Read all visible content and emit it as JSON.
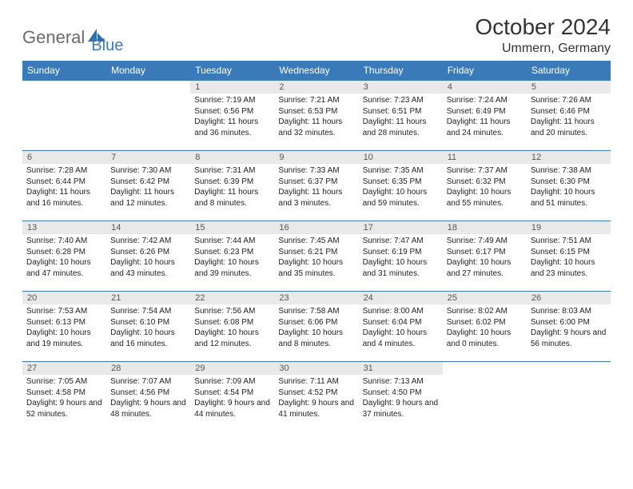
{
  "logo": {
    "word1": "General",
    "word2": "Blue"
  },
  "title": "October 2024",
  "location": "Ummern, Germany",
  "colors": {
    "header_bg": "#3a7ab8",
    "header_text": "#ffffff",
    "daynum_bg": "#e9e9e9",
    "border": "#3a7ab8",
    "logo_gray": "#6b6b6b",
    "logo_blue": "#3a7ab8"
  },
  "day_headers": [
    "Sunday",
    "Monday",
    "Tuesday",
    "Wednesday",
    "Thursday",
    "Friday",
    "Saturday"
  ],
  "weeks": [
    [
      null,
      null,
      {
        "n": "1",
        "sr": "7:19 AM",
        "ss": "6:56 PM",
        "dl": "11 hours and 36 minutes."
      },
      {
        "n": "2",
        "sr": "7:21 AM",
        "ss": "6:53 PM",
        "dl": "11 hours and 32 minutes."
      },
      {
        "n": "3",
        "sr": "7:23 AM",
        "ss": "6:51 PM",
        "dl": "11 hours and 28 minutes."
      },
      {
        "n": "4",
        "sr": "7:24 AM",
        "ss": "6:49 PM",
        "dl": "11 hours and 24 minutes."
      },
      {
        "n": "5",
        "sr": "7:26 AM",
        "ss": "6:46 PM",
        "dl": "11 hours and 20 minutes."
      }
    ],
    [
      {
        "n": "6",
        "sr": "7:28 AM",
        "ss": "6:44 PM",
        "dl": "11 hours and 16 minutes."
      },
      {
        "n": "7",
        "sr": "7:30 AM",
        "ss": "6:42 PM",
        "dl": "11 hours and 12 minutes."
      },
      {
        "n": "8",
        "sr": "7:31 AM",
        "ss": "6:39 PM",
        "dl": "11 hours and 8 minutes."
      },
      {
        "n": "9",
        "sr": "7:33 AM",
        "ss": "6:37 PM",
        "dl": "11 hours and 3 minutes."
      },
      {
        "n": "10",
        "sr": "7:35 AM",
        "ss": "6:35 PM",
        "dl": "10 hours and 59 minutes."
      },
      {
        "n": "11",
        "sr": "7:37 AM",
        "ss": "6:32 PM",
        "dl": "10 hours and 55 minutes."
      },
      {
        "n": "12",
        "sr": "7:38 AM",
        "ss": "6:30 PM",
        "dl": "10 hours and 51 minutes."
      }
    ],
    [
      {
        "n": "13",
        "sr": "7:40 AM",
        "ss": "6:28 PM",
        "dl": "10 hours and 47 minutes."
      },
      {
        "n": "14",
        "sr": "7:42 AM",
        "ss": "6:26 PM",
        "dl": "10 hours and 43 minutes."
      },
      {
        "n": "15",
        "sr": "7:44 AM",
        "ss": "6:23 PM",
        "dl": "10 hours and 39 minutes."
      },
      {
        "n": "16",
        "sr": "7:45 AM",
        "ss": "6:21 PM",
        "dl": "10 hours and 35 minutes."
      },
      {
        "n": "17",
        "sr": "7:47 AM",
        "ss": "6:19 PM",
        "dl": "10 hours and 31 minutes."
      },
      {
        "n": "18",
        "sr": "7:49 AM",
        "ss": "6:17 PM",
        "dl": "10 hours and 27 minutes."
      },
      {
        "n": "19",
        "sr": "7:51 AM",
        "ss": "6:15 PM",
        "dl": "10 hours and 23 minutes."
      }
    ],
    [
      {
        "n": "20",
        "sr": "7:53 AM",
        "ss": "6:13 PM",
        "dl": "10 hours and 19 minutes."
      },
      {
        "n": "21",
        "sr": "7:54 AM",
        "ss": "6:10 PM",
        "dl": "10 hours and 16 minutes."
      },
      {
        "n": "22",
        "sr": "7:56 AM",
        "ss": "6:08 PM",
        "dl": "10 hours and 12 minutes."
      },
      {
        "n": "23",
        "sr": "7:58 AM",
        "ss": "6:06 PM",
        "dl": "10 hours and 8 minutes."
      },
      {
        "n": "24",
        "sr": "8:00 AM",
        "ss": "6:04 PM",
        "dl": "10 hours and 4 minutes."
      },
      {
        "n": "25",
        "sr": "8:02 AM",
        "ss": "6:02 PM",
        "dl": "10 hours and 0 minutes."
      },
      {
        "n": "26",
        "sr": "8:03 AM",
        "ss": "6:00 PM",
        "dl": "9 hours and 56 minutes."
      }
    ],
    [
      {
        "n": "27",
        "sr": "7:05 AM",
        "ss": "4:58 PM",
        "dl": "9 hours and 52 minutes."
      },
      {
        "n": "28",
        "sr": "7:07 AM",
        "ss": "4:56 PM",
        "dl": "9 hours and 48 minutes."
      },
      {
        "n": "29",
        "sr": "7:09 AM",
        "ss": "4:54 PM",
        "dl": "9 hours and 44 minutes."
      },
      {
        "n": "30",
        "sr": "7:11 AM",
        "ss": "4:52 PM",
        "dl": "9 hours and 41 minutes."
      },
      {
        "n": "31",
        "sr": "7:13 AM",
        "ss": "4:50 PM",
        "dl": "9 hours and 37 minutes."
      },
      null,
      null
    ]
  ],
  "labels": {
    "sunrise": "Sunrise:",
    "sunset": "Sunset:",
    "daylight": "Daylight:"
  }
}
